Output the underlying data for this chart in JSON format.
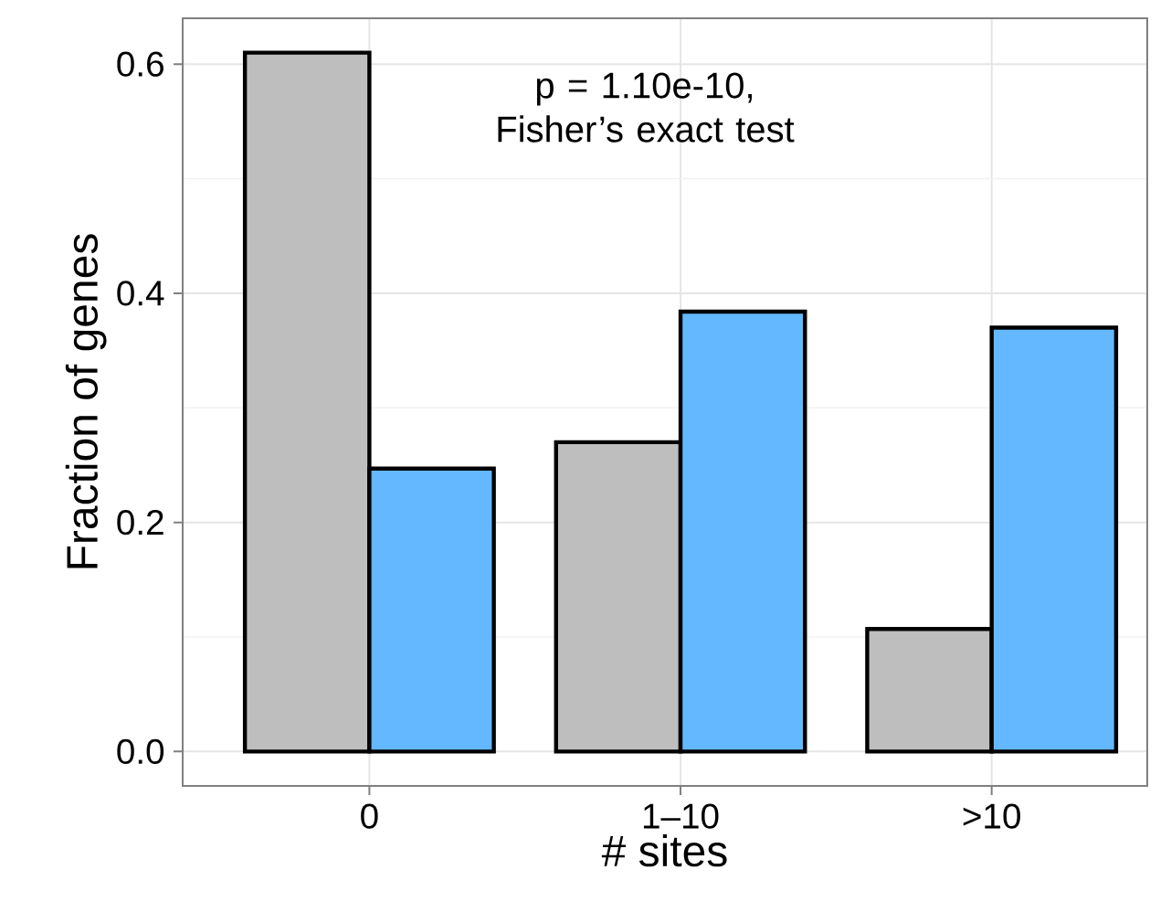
{
  "chart_data": {
    "type": "bar",
    "xlabel": "# sites",
    "ylabel": "Fraction of genes",
    "categories": [
      "0",
      "1–10",
      ">10"
    ],
    "series": [
      {
        "color": "#bebebe",
        "values": [
          0.61,
          0.27,
          0.107
        ]
      },
      {
        "color": "#63b8ff",
        "values": [
          0.247,
          0.384,
          0.37
        ]
      }
    ],
    "ylim": [
      -0.03,
      0.64
    ],
    "yticks": [
      {
        "value": 0,
        "label": "0.0"
      },
      0.2,
      0.4,
      0.6
    ],
    "grid": true,
    "annotations": [
      "p = 1.10e-10,\nFisher’s exact test"
    ]
  }
}
